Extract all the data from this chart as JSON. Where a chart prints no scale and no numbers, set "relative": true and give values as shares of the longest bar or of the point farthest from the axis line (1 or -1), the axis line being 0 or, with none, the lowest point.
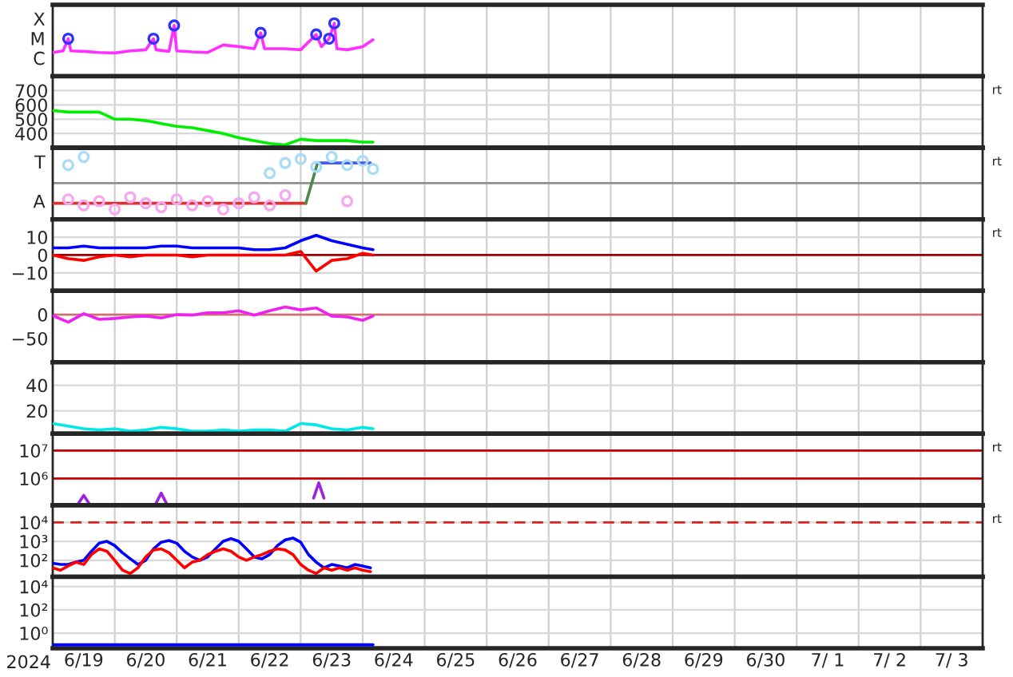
{
  "chart_data": [
    {
      "type": "line",
      "relative": true,
      "tick_labels": false,
      "grid": "x",
      "xlim": [
        "2024-06-19",
        "2024-07-04"
      ],
      "annotations": [
        "X",
        "M",
        "C"
      ],
      "series": [
        {
          "color": "#ff30ff",
          "x": [
            "2024-06-19T00:00",
            "2024-06-19T04:00",
            "2024-06-19T06:00",
            "2024-06-19T07:00",
            "2024-06-19T12:00",
            "2024-06-19T18:00",
            "2024-06-20T00:00",
            "2024-06-20T06:00",
            "2024-06-20T12:00",
            "2024-06-20T15:00",
            "2024-06-20T16:00",
            "2024-06-20T21:00",
            "2024-06-20T23:00",
            "2024-06-21T00:00",
            "2024-06-21T06:00",
            "2024-06-21T12:00",
            "2024-06-21T18:00",
            "2024-06-22T00:00",
            "2024-06-22T06:00",
            "2024-06-22T08:30",
            "2024-06-22T10:00",
            "2024-06-22T18:00",
            "2024-06-23T00:00",
            "2024-06-23T06:00",
            "2024-06-23T08:00",
            "2024-06-23T11:00",
            "2024-06-23T13:00",
            "2024-06-23T14:00",
            "2024-06-23T18:00",
            "2024-06-24T00:00",
            "2024-06-24T04:00"
          ],
          "values": [
            0.45,
            0.48,
            0.71,
            0.48,
            0.47,
            0.45,
            0.44,
            0.48,
            0.5,
            0.71,
            0.5,
            0.47,
            0.96,
            0.48,
            0.46,
            0.45,
            0.59,
            0.56,
            0.52,
            0.82,
            0.52,
            0.52,
            0.5,
            0.79,
            0.56,
            0.71,
            1,
            0.52,
            0.5,
            0.56,
            0.69
          ]
        },
        {
          "type": "scatter",
          "marker": "circle",
          "color": "#3030ff",
          "x": [
            "2024-06-19T06:00",
            "2024-06-20T15:00",
            "2024-06-20T23:00",
            "2024-06-22T08:30",
            "2024-06-23T06:00",
            "2024-06-23T11:00",
            "2024-06-23T13:00"
          ],
          "values": [
            0.71,
            0.71,
            0.96,
            0.82,
            0.79,
            0.71,
            1
          ]
        }
      ]
    },
    {
      "type": "line",
      "tick_labels": "y",
      "grid": true,
      "xlim": [
        "2024-06-19",
        "2024-07-04"
      ],
      "y2label": "rt",
      "x": [
        "2024-06-19T00:00",
        "2024-06-19T06:00",
        "2024-06-19T12:00",
        "2024-06-19T18:00",
        "2024-06-20T00:00",
        "2024-06-20T06:00",
        "2024-06-20T12:00",
        "2024-06-20T18:00",
        "2024-06-21T00:00",
        "2024-06-21T06:00",
        "2024-06-21T12:00",
        "2024-06-21T18:00",
        "2024-06-22T00:00",
        "2024-06-22T06:00",
        "2024-06-22T12:00",
        "2024-06-22T18:00",
        "2024-06-23T00:00",
        "2024-06-23T06:00",
        "2024-06-23T12:00",
        "2024-06-23T18:00",
        "2024-06-24T00:00",
        "2024-06-24T04:00"
      ],
      "ylim": [
        300,
        800
      ],
      "yticks": [
        400,
        500,
        600,
        700
      ],
      "series": [
        {
          "color": "#00ee00",
          "values": [
            560,
            550,
            550,
            550,
            500,
            500,
            490,
            470,
            450,
            440,
            420,
            400,
            370,
            350,
            330,
            320,
            360,
            350,
            350,
            350,
            340,
            340
          ]
        }
      ]
    },
    {
      "type": "scatter",
      "relative": true,
      "tick_labels": false,
      "grid": "x",
      "xlim": [
        "2024-06-19",
        "2024-07-04"
      ],
      "y2label": "rt",
      "annotations": [
        "T",
        "A"
      ],
      "x": [
        "2024-06-19T06:00",
        "2024-06-19T12:00",
        "2024-06-19T18:00",
        "2024-06-20T00:00",
        "2024-06-20T06:00",
        "2024-06-20T12:00",
        "2024-06-20T18:00",
        "2024-06-21T00:00",
        "2024-06-21T06:00",
        "2024-06-21T12:00",
        "2024-06-21T18:00",
        "2024-06-22T00:00",
        "2024-06-22T06:00",
        "2024-06-22T12:00",
        "2024-06-22T18:00",
        "2024-06-23T00:00",
        "2024-06-23T06:00",
        "2024-06-23T12:00",
        "2024-06-23T18:00",
        "2024-06-24T00:00",
        "2024-06-24T04:00"
      ],
      "ref_lines": [
        {
          "axis": "y",
          "value": 0,
          "color": "#909090"
        }
      ],
      "series": [
        {
          "marker": "circle",
          "color": "#f5a8f0",
          "values": [
            -0.62,
            -0.85,
            -0.69,
            -1,
            -0.54,
            -0.77,
            -0.92,
            -0.62,
            -0.85,
            -0.69,
            -1,
            -0.77,
            -0.54,
            -0.85,
            -0.46,
            null,
            null,
            null,
            -0.69,
            null,
            null
          ]
        },
        {
          "marker": "circle",
          "color": "#a8dcf5",
          "values": [
            0.69,
            1,
            null,
            null,
            null,
            null,
            null,
            null,
            null,
            null,
            null,
            null,
            null,
            0.38,
            0.77,
            0.92,
            0.62,
            1,
            0.69,
            0.85,
            0.54
          ]
        },
        {
          "type": "line",
          "color": "#e03030",
          "x": [
            "2024-06-19T00:00",
            "2024-06-23T02:00"
          ],
          "values": [
            -0.77,
            -0.77
          ]
        },
        {
          "type": "line",
          "color": "#4a8a4a",
          "x": [
            "2024-06-23T02:00",
            "2024-06-23T06:30"
          ],
          "values": [
            -0.77,
            0.77
          ]
        },
        {
          "type": "line",
          "color": "#4a5ae8",
          "x": [
            "2024-06-23T06:30",
            "2024-06-24T03:00"
          ],
          "values": [
            0.77,
            0.77
          ]
        }
      ]
    },
    {
      "type": "line",
      "tick_labels": "y",
      "grid": true,
      "xlim": [
        "2024-06-19",
        "2024-07-04"
      ],
      "y2label": "rt",
      "x": [
        "2024-06-19T00:00",
        "2024-06-19T06:00",
        "2024-06-19T12:00",
        "2024-06-19T18:00",
        "2024-06-20T00:00",
        "2024-06-20T06:00",
        "2024-06-20T12:00",
        "2024-06-20T18:00",
        "2024-06-21T00:00",
        "2024-06-21T06:00",
        "2024-06-21T12:00",
        "2024-06-21T18:00",
        "2024-06-22T00:00",
        "2024-06-22T06:00",
        "2024-06-22T12:00",
        "2024-06-22T18:00",
        "2024-06-23T00:00",
        "2024-06-23T06:00",
        "2024-06-23T12:00",
        "2024-06-23T18:00",
        "2024-06-24T00:00",
        "2024-06-24T04:00"
      ],
      "ylim": [
        -20,
        20
      ],
      "yticks": [
        {
          "value": -10,
          "label": "−10"
        },
        0,
        10
      ],
      "ref_lines": [
        {
          "axis": "y",
          "value": 0,
          "color": "#a00000"
        }
      ],
      "series": [
        {
          "color": "#0000ff",
          "values": [
            4,
            4,
            5,
            4,
            4,
            4,
            4,
            5,
            5,
            4,
            4,
            4,
            4,
            3,
            3,
            4,
            8,
            11,
            8,
            6,
            4,
            3
          ]
        },
        {
          "color": "#ff0000",
          "values": [
            0,
            -2,
            -3,
            -1,
            0,
            -1,
            0,
            0,
            0,
            -1,
            0,
            0,
            0,
            0,
            0,
            0,
            2,
            -9,
            -3,
            -2,
            1,
            0
          ]
        }
      ]
    },
    {
      "type": "line",
      "tick_labels": "y",
      "grid": "x",
      "xlim": [
        "2024-06-19",
        "2024-07-04"
      ],
      "x": [
        "2024-06-19T00:00",
        "2024-06-19T06:00",
        "2024-06-19T12:00",
        "2024-06-19T18:00",
        "2024-06-20T00:00",
        "2024-06-20T06:00",
        "2024-06-20T12:00",
        "2024-06-20T18:00",
        "2024-06-21T00:00",
        "2024-06-21T06:00",
        "2024-06-21T12:00",
        "2024-06-21T18:00",
        "2024-06-22T00:00",
        "2024-06-22T06:00",
        "2024-06-22T12:00",
        "2024-06-22T18:00",
        "2024-06-23T00:00",
        "2024-06-23T06:00",
        "2024-06-23T12:00",
        "2024-06-23T18:00",
        "2024-06-24T00:00",
        "2024-06-24T04:00"
      ],
      "ylim": [
        -100,
        50
      ],
      "yticks": [
        {
          "value": -50,
          "label": "−50"
        },
        0
      ],
      "ref_lines": [
        {
          "axis": "y",
          "value": 0,
          "color": "#d07070"
        }
      ],
      "series": [
        {
          "color": "#ee22ee",
          "values": [
            -2,
            -16,
            2,
            -10,
            -8,
            -5,
            -3,
            -7,
            0,
            -1,
            4,
            4,
            8,
            -1,
            8,
            16,
            10,
            14,
            -3,
            -5,
            -12,
            -3
          ]
        }
      ]
    },
    {
      "type": "line",
      "tick_labels": "y",
      "grid": true,
      "xlim": [
        "2024-06-19",
        "2024-07-04"
      ],
      "x": [
        "2024-06-19T00:00",
        "2024-06-19T06:00",
        "2024-06-19T12:00",
        "2024-06-19T18:00",
        "2024-06-20T00:00",
        "2024-06-20T06:00",
        "2024-06-20T12:00",
        "2024-06-20T18:00",
        "2024-06-21T00:00",
        "2024-06-21T06:00",
        "2024-06-21T12:00",
        "2024-06-21T18:00",
        "2024-06-22T00:00",
        "2024-06-22T06:00",
        "2024-06-22T12:00",
        "2024-06-22T18:00",
        "2024-06-23T00:00",
        "2024-06-23T06:00",
        "2024-06-23T12:00",
        "2024-06-23T18:00",
        "2024-06-24T00:00",
        "2024-06-24T04:00"
      ],
      "ylim": [
        2,
        58
      ],
      "yticks": [
        20,
        40
      ],
      "series": [
        {
          "color": "#00e8e8",
          "values": [
            10,
            8,
            6,
            5,
            6,
            4,
            5,
            7,
            6,
            4,
            4,
            5,
            4,
            5,
            5,
            4,
            10,
            9,
            6,
            5,
            7,
            6
          ]
        }
      ]
    },
    {
      "type": "line",
      "tick_labels": "y",
      "log": "y",
      "grid": true,
      "xlim": [
        "2024-06-19",
        "2024-07-04"
      ],
      "y2label": "rt",
      "ylim": [
        110000.0,
        40000000.0
      ],
      "yticks": [
        {
          "value": 1000000.0,
          "label": "10⁶"
        },
        {
          "value": 10000000.0,
          "label": "10⁷"
        }
      ],
      "ref_lines": [
        {
          "axis": "y",
          "value": 1000000.0,
          "color": "#cc0000"
        },
        {
          "axis": "y",
          "value": 10000000.0,
          "color": "#cc0000"
        }
      ],
      "series": [
        {
          "color": "#a020e0",
          "x": [
            "2024-06-19T10:00",
            "2024-06-19T12:00",
            "2024-06-19T14:00",
            "2024-06-20T00:00",
            "2024-06-20T16:00",
            "2024-06-20T18:00",
            "2024-06-20T20:00",
            "2024-06-21T00:00",
            "2024-06-23T05:00",
            "2024-06-23T07:00",
            "2024-06-23T09:00"
          ],
          "values": [
            130000.0,
            250000.0,
            130000.0,
            null,
            130000.0,
            300000.0,
            130000.0,
            null,
            200000.0,
            700000.0,
            200000.0
          ]
        }
      ]
    },
    {
      "type": "line",
      "tick_labels": "y",
      "log": "y",
      "grid": true,
      "xlim": [
        "2024-06-19",
        "2024-07-04"
      ],
      "y2label": "rt",
      "x": [
        "2024-06-19T00:00",
        "2024-06-19T03:00",
        "2024-06-19T06:00",
        "2024-06-19T09:00",
        "2024-06-19T12:00",
        "2024-06-19T15:00",
        "2024-06-19T18:00",
        "2024-06-19T21:00",
        "2024-06-20T00:00",
        "2024-06-20T03:00",
        "2024-06-20T06:00",
        "2024-06-20T09:00",
        "2024-06-20T12:00",
        "2024-06-20T15:00",
        "2024-06-20T18:00",
        "2024-06-20T21:00",
        "2024-06-21T00:00",
        "2024-06-21T03:00",
        "2024-06-21T06:00",
        "2024-06-21T09:00",
        "2024-06-21T12:00",
        "2024-06-21T15:00",
        "2024-06-21T18:00",
        "2024-06-21T21:00",
        "2024-06-22T00:00",
        "2024-06-22T03:00",
        "2024-06-22T06:00",
        "2024-06-22T09:00",
        "2024-06-22T12:00",
        "2024-06-22T15:00",
        "2024-06-22T18:00",
        "2024-06-22T21:00",
        "2024-06-23T00:00",
        "2024-06-23T03:00",
        "2024-06-23T06:00",
        "2024-06-23T09:00",
        "2024-06-23T12:00",
        "2024-06-23T15:00",
        "2024-06-23T18:00",
        "2024-06-23T21:00",
        "2024-06-24T00:00",
        "2024-06-24T03:00"
      ],
      "ylim": [
        13.5,
        80000.0
      ],
      "yticks": [
        {
          "value": 100,
          "label": "10²"
        },
        {
          "value": 1000,
          "label": "10³"
        },
        {
          "value": 10000,
          "label": "10⁴"
        }
      ],
      "ref_lines": [
        {
          "axis": "y",
          "value": 10000,
          "color": "#dd2222",
          "line_style": "dashed"
        }
      ],
      "series": [
        {
          "color": "#0000ff",
          "values": [
            70,
            60,
            60,
            80,
            100,
            300,
            800,
            1000,
            600,
            250,
            120,
            60,
            100,
            400,
            900,
            1100,
            800,
            300,
            150,
            100,
            150,
            400,
            1000,
            1400,
            1000,
            400,
            150,
            120,
            200,
            600,
            1200,
            1500,
            900,
            200,
            80,
            40,
            60,
            50,
            40,
            60,
            50,
            40
          ]
        },
        {
          "color": "#ff0000",
          "values": [
            40,
            30,
            50,
            80,
            60,
            200,
            400,
            300,
            100,
            30,
            20,
            40,
            150,
            350,
            400,
            250,
            100,
            40,
            80,
            100,
            200,
            300,
            400,
            300,
            150,
            100,
            150,
            200,
            300,
            400,
            350,
            200,
            60,
            30,
            20,
            40,
            30,
            40,
            30,
            40,
            30,
            25
          ]
        }
      ]
    },
    {
      "type": "line",
      "log": "y",
      "grid": true,
      "xlim": [
        "2024-06-19",
        "2024-07-04"
      ],
      "xlabel": "2024",
      "xticks": [
        {
          "value": "2024-06-19T12:00",
          "label": "6/19"
        },
        {
          "value": "2024-06-20",
          "label": null
        },
        {
          "value": "2024-06-20T12:00",
          "label": "6/20"
        },
        {
          "value": "2024-06-21",
          "label": null
        },
        {
          "value": "2024-06-21T12:00",
          "label": "6/21"
        },
        {
          "value": "2024-06-22",
          "label": null
        },
        {
          "value": "2024-06-22T12:00",
          "label": "6/22"
        },
        {
          "value": "2024-06-23",
          "label": null
        },
        {
          "value": "2024-06-23T12:00",
          "label": "6/23"
        },
        {
          "value": "2024-06-24",
          "label": null
        },
        {
          "value": "2024-06-24T12:00",
          "label": "6/24"
        },
        {
          "value": "2024-06-25",
          "label": null
        },
        {
          "value": "2024-06-25T12:00",
          "label": "6/25"
        },
        {
          "value": "2024-06-26",
          "label": null
        },
        {
          "value": "2024-06-26T12:00",
          "label": "6/26"
        },
        {
          "value": "2024-06-27",
          "label": null
        },
        {
          "value": "2024-06-27T12:00",
          "label": "6/27"
        },
        {
          "value": "2024-06-28",
          "label": null
        },
        {
          "value": "2024-06-28T12:00",
          "label": "6/28"
        },
        {
          "value": "2024-06-29",
          "label": null
        },
        {
          "value": "2024-06-29T12:00",
          "label": "6/29"
        },
        {
          "value": "2024-06-30",
          "label": null
        },
        {
          "value": "2024-06-30T12:00",
          "label": "6/30"
        },
        {
          "value": "2024-07-01",
          "label": null
        },
        {
          "value": "2024-07-01T12:00",
          "label": "7/ 1"
        },
        {
          "value": "2024-07-02",
          "label": null
        },
        {
          "value": "2024-07-02T12:00",
          "label": "7/ 2"
        },
        {
          "value": "2024-07-03",
          "label": null
        },
        {
          "value": "2024-07-03T12:00",
          "label": "7/ 3"
        }
      ],
      "ylim": [
        0.05,
        70000.0
      ],
      "yticks": [
        {
          "value": 1,
          "label": "10⁰"
        },
        {
          "value": 100,
          "label": "10²"
        },
        {
          "value": 10000,
          "label": "10⁴"
        }
      ],
      "series": [
        {
          "color": "#0000ff",
          "x": [
            "2024-06-19T00:00",
            "2024-06-20T00:00",
            "2024-06-21T00:00",
            "2024-06-22T00:00",
            "2024-06-23T00:00",
            "2024-06-24T00:00",
            "2024-06-24T04:00"
          ],
          "values": [
            0.1,
            0.1,
            0.1,
            0.1,
            0.1,
            0.1,
            0.1
          ]
        }
      ]
    }
  ]
}
